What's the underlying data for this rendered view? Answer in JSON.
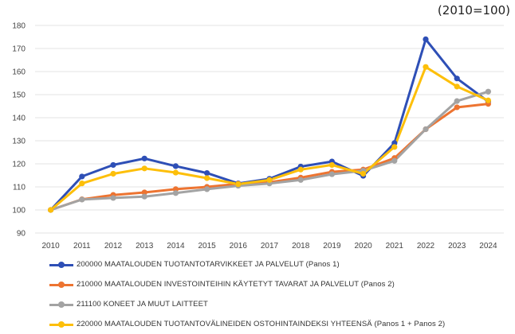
{
  "note": "(2010=100)",
  "chart_data": {
    "type": "line",
    "title": "",
    "xlabel": "",
    "ylabel": "",
    "x": [
      2010,
      2011,
      2012,
      2013,
      2014,
      2015,
      2016,
      2017,
      2018,
      2019,
      2020,
      2021,
      2022,
      2023,
      2024
    ],
    "ylim": [
      90,
      180
    ],
    "yticks": [
      90,
      100,
      110,
      120,
      130,
      140,
      150,
      160,
      170,
      180
    ],
    "grid": "horizontal",
    "legend_position": "bottom",
    "series": [
      {
        "name": "200000 MAATALOUDEN TUOTANTOTARVIKKEET JA PALVELUT (Panos 1)",
        "color": "#2e4fb6",
        "values": [
          100,
          114.5,
          119.5,
          122.3,
          119,
          116,
          111.5,
          113.5,
          118.8,
          121,
          114.8,
          129,
          174,
          157,
          147
        ]
      },
      {
        "name": "210000 MAATALOUDEN INVESTOINTEIHIN KÄYTETYT TAVARAT JA PALVELUT (Panos 2)",
        "color": "#ed7431",
        "values": [
          100,
          104.6,
          106.5,
          107.6,
          109,
          110,
          111.3,
          112,
          114,
          116.5,
          117.5,
          122.5,
          135,
          144.5,
          146
        ]
      },
      {
        "name": "211100 KONEET JA MUUT LAITTEET",
        "color": "#a3a3a3",
        "values": [
          100,
          104.5,
          105.2,
          105.8,
          107.3,
          109,
          110.5,
          111.5,
          113,
          115.5,
          117,
          121.3,
          135,
          147.2,
          151.3
        ]
      },
      {
        "name": "220000 MAATALOUDEN TUOTANTOVÄLINEIDEN OSTOHINTAINDEKSI YHTEENSÄ (Panos 1 + Panos 2)",
        "color": "#fdbf0a",
        "values": [
          100,
          111.5,
          115.7,
          118,
          116.2,
          113.8,
          111.2,
          113,
          117.5,
          119.5,
          115.7,
          127.3,
          162,
          153.5,
          147.5
        ]
      }
    ]
  }
}
